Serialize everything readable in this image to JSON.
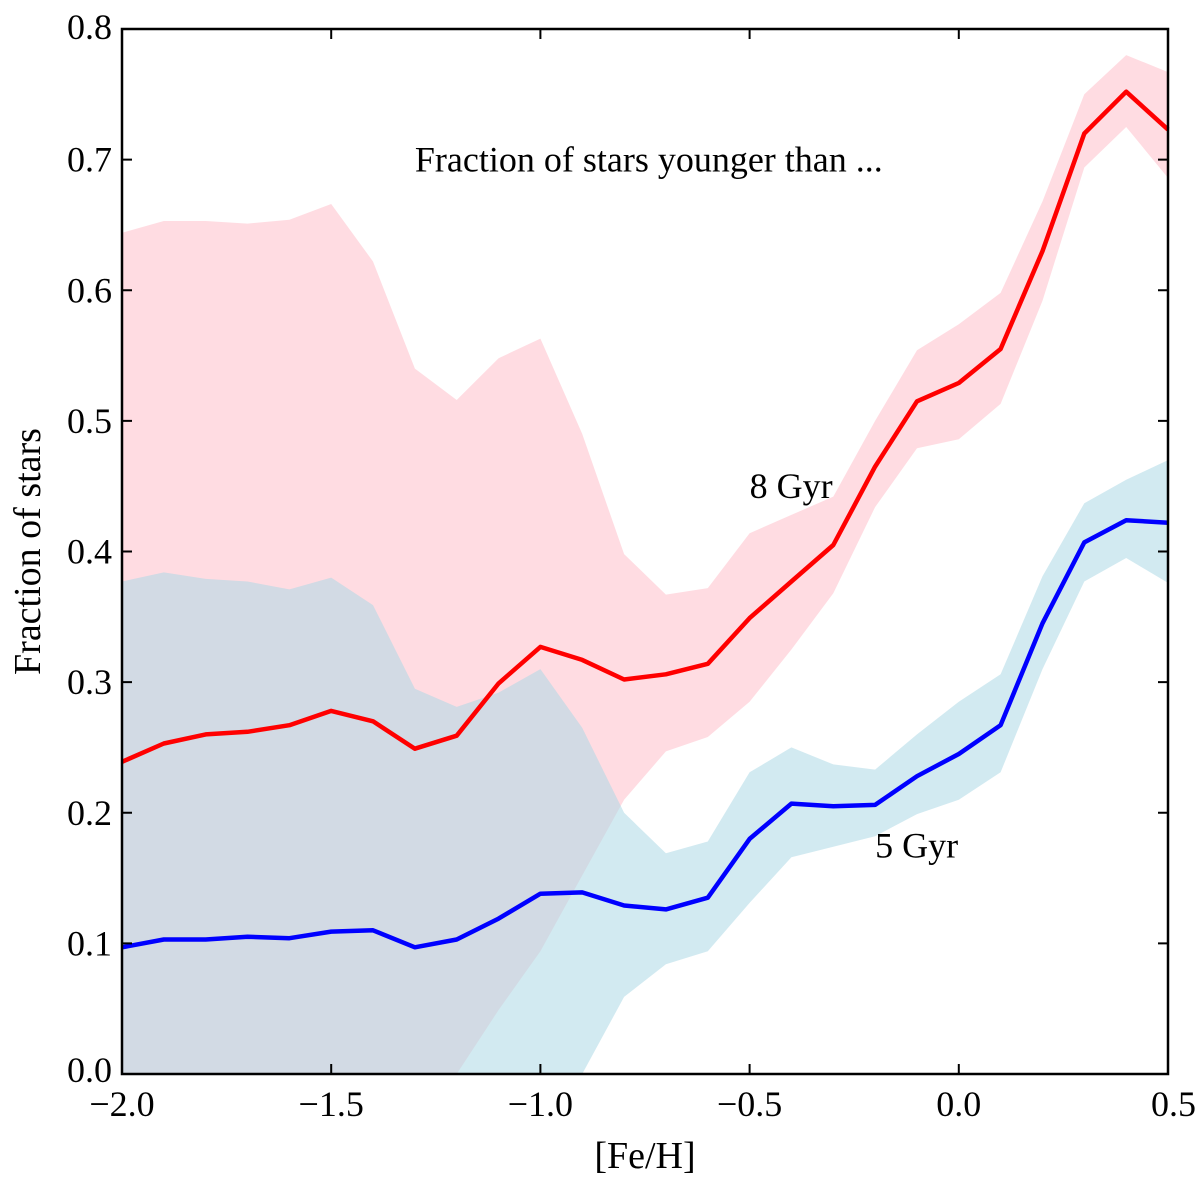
{
  "chart_data": {
    "type": "line",
    "title": "",
    "xlabel": "[Fe/H]",
    "ylabel": "Fraction of stars",
    "xlim": [
      -2.0,
      0.5
    ],
    "ylim": [
      0.0,
      0.8
    ],
    "xticks": [
      -2.0,
      -1.5,
      -1.0,
      -0.5,
      0.0,
      0.5
    ],
    "xtick_labels": [
      "−2.0",
      "−1.5",
      "−1.0",
      "−0.5",
      "0.0",
      "0.5"
    ],
    "yticks": [
      0.0,
      0.1,
      0.2,
      0.3,
      0.4,
      0.5,
      0.6,
      0.7,
      0.8
    ],
    "ytick_labels": [
      "0.0",
      "0.1",
      "0.2",
      "0.3",
      "0.4",
      "0.5",
      "0.6",
      "0.7",
      "0.8"
    ],
    "grid": false,
    "x": [
      -2.0,
      -1.9,
      -1.8,
      -1.7,
      -1.6,
      -1.5,
      -1.4,
      -1.3,
      -1.2,
      -1.1,
      -1.0,
      -0.9,
      -0.8,
      -0.7,
      -0.6,
      -0.5,
      -0.4,
      -0.3,
      -0.2,
      -0.1,
      0.0,
      0.1,
      0.2,
      0.3,
      0.4,
      0.5
    ],
    "series": [
      {
        "name": "8 Gyr",
        "color": "#ff0000",
        "band_color": "#ffc0cb",
        "values": [
          0.239,
          0.253,
          0.26,
          0.262,
          0.267,
          0.278,
          0.27,
          0.249,
          0.259,
          0.299,
          0.327,
          0.317,
          0.302,
          0.306,
          0.314,
          0.349,
          0.377,
          0.405,
          0.465,
          0.515,
          0.529,
          0.555,
          0.63,
          0.72,
          0.752,
          0.723
        ],
        "upper": [
          0.644,
          0.653,
          0.653,
          0.651,
          0.654,
          0.666,
          0.622,
          0.54,
          0.516,
          0.548,
          0.563,
          0.49,
          0.398,
          0.367,
          0.372,
          0.414,
          0.428,
          0.442,
          0.5,
          0.554,
          0.574,
          0.598,
          0.668,
          0.75,
          0.78,
          0.767
        ],
        "lower": [
          0.0,
          0.0,
          0.0,
          0.0,
          0.0,
          0.0,
          0.0,
          0.0,
          0.0,
          0.049,
          0.094,
          0.152,
          0.21,
          0.247,
          0.258,
          0.285,
          0.325,
          0.368,
          0.434,
          0.479,
          0.486,
          0.513,
          0.592,
          0.694,
          0.725,
          0.686
        ]
      },
      {
        "name": "5 Gyr",
        "color": "#0000ff",
        "band_color": "#add8e6",
        "values": [
          0.097,
          0.103,
          0.103,
          0.105,
          0.104,
          0.109,
          0.11,
          0.097,
          0.103,
          0.119,
          0.138,
          0.139,
          0.129,
          0.126,
          0.135,
          0.18,
          0.207,
          0.205,
          0.206,
          0.228,
          0.245,
          0.267,
          0.345,
          0.407,
          0.424,
          0.422
        ],
        "upper": [
          0.377,
          0.384,
          0.379,
          0.377,
          0.371,
          0.38,
          0.359,
          0.295,
          0.281,
          0.292,
          0.31,
          0.265,
          0.2,
          0.169,
          0.178,
          0.231,
          0.25,
          0.237,
          0.233,
          0.26,
          0.285,
          0.306,
          0.381,
          0.437,
          0.455,
          0.47
        ],
        "lower": [
          0.0,
          0.0,
          0.0,
          0.0,
          0.0,
          0.0,
          0.0,
          0.0,
          0.0,
          0.0,
          0.0,
          0.0,
          0.059,
          0.084,
          0.094,
          0.131,
          0.166,
          0.174,
          0.182,
          0.199,
          0.21,
          0.231,
          0.31,
          0.377,
          0.395,
          0.376
        ]
      }
    ],
    "annotations": [
      {
        "text": "Fraction of stars younger than ...",
        "x": -1.3,
        "y": 0.7
      },
      {
        "text": "8 Gyr",
        "x": -0.5,
        "y": 0.45
      },
      {
        "text": "5 Gyr",
        "x": -0.2,
        "y": 0.175
      }
    ]
  }
}
